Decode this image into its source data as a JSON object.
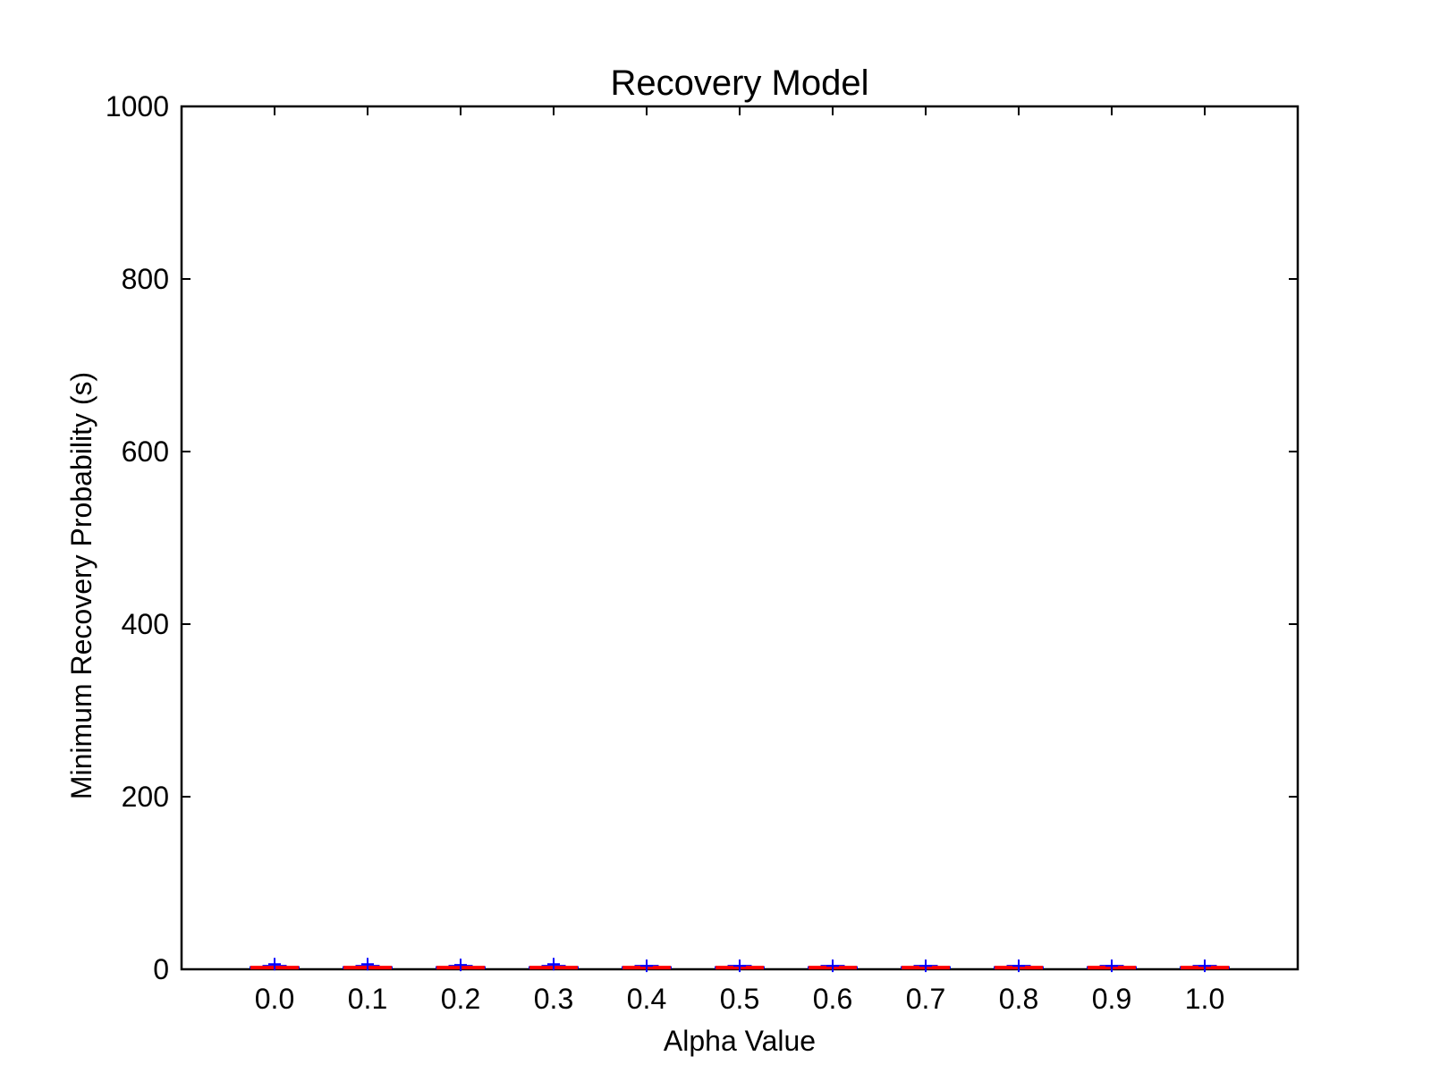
{
  "chart_data": {
    "type": "box",
    "title": "Recovery Model",
    "xlabel": "Alpha Value",
    "ylabel": "Minimum Recovery Probability (s)",
    "categories": [
      "0.0",
      "0.1",
      "0.2",
      "0.3",
      "0.4",
      "0.5",
      "0.6",
      "0.7",
      "0.8",
      "0.9",
      "1.0"
    ],
    "ylim": [
      0,
      1000
    ],
    "yticks": [
      0,
      200,
      400,
      600,
      800,
      1000
    ],
    "series": [
      {
        "values": [
          {
            "min": 1,
            "q1": 1.5,
            "median": 2,
            "q3": 2.5,
            "max": 4,
            "outliers": [
              6
            ]
          },
          {
            "min": 1,
            "q1": 1.5,
            "median": 2,
            "q3": 2.5,
            "max": 4,
            "outliers": [
              6
            ]
          },
          {
            "min": 1,
            "q1": 1.5,
            "median": 2,
            "q3": 2.5,
            "max": 4,
            "outliers": [
              5
            ]
          },
          {
            "min": 1,
            "q1": 1.5,
            "median": 2,
            "q3": 2.5,
            "max": 4,
            "outliers": [
              6
            ]
          },
          {
            "min": 1,
            "q1": 1.5,
            "median": 2,
            "q3": 2.5,
            "max": 4,
            "outliers": [
              4
            ]
          },
          {
            "min": 1,
            "q1": 1.5,
            "median": 2,
            "q3": 2.5,
            "max": 4,
            "outliers": [
              4
            ]
          },
          {
            "min": 1,
            "q1": 1.5,
            "median": 2,
            "q3": 2.5,
            "max": 4,
            "outliers": [
              4
            ]
          },
          {
            "min": 1,
            "q1": 1.5,
            "median": 2,
            "q3": 2.5,
            "max": 4,
            "outliers": [
              4
            ]
          },
          {
            "min": 1,
            "q1": 1.5,
            "median": 2,
            "q3": 2.5,
            "max": 4,
            "outliers": [
              4
            ]
          },
          {
            "min": 1,
            "q1": 1.5,
            "median": 2,
            "q3": 2.5,
            "max": 4,
            "outliers": [
              4
            ]
          },
          {
            "min": 1,
            "q1": 1.5,
            "median": 2,
            "q3": 2.5,
            "max": 4,
            "outliers": [
              4
            ]
          }
        ]
      }
    ],
    "grid": false,
    "colors": {
      "median": "#ff0000",
      "box": "#0000ff",
      "outlier": "#0000ff",
      "axis": "#000000"
    }
  }
}
